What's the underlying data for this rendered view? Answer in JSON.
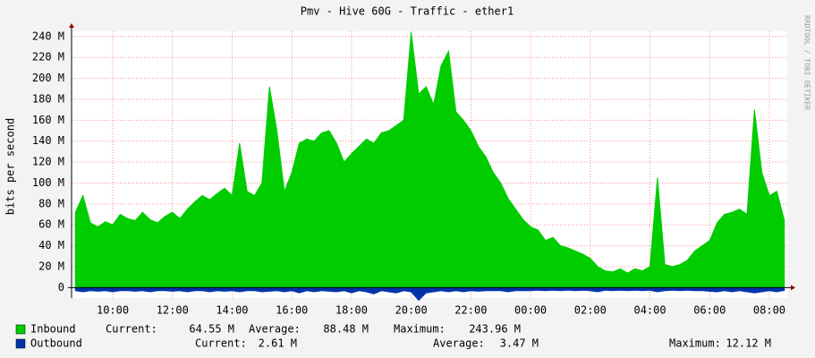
{
  "chart_data": {
    "type": "area",
    "title": "Pmv - Hive 60G - Traffic - ether1",
    "ylabel": "bits per second",
    "watermark": "RRDTOOL / TOBI OETIKER",
    "xlim": [
      8.62,
      32.6
    ],
    "ylim": [
      -10,
      245
    ],
    "xticks": [
      {
        "value": 10,
        "label": "10:00"
      },
      {
        "value": 12,
        "label": "12:00"
      },
      {
        "value": 14,
        "label": "14:00"
      },
      {
        "value": 16,
        "label": "16:00"
      },
      {
        "value": 18,
        "label": "18:00"
      },
      {
        "value": 20,
        "label": "20:00"
      },
      {
        "value": 22,
        "label": "22:00"
      },
      {
        "value": 24,
        "label": "00:00"
      },
      {
        "value": 26,
        "label": "02:00"
      },
      {
        "value": 28,
        "label": "04:00"
      },
      {
        "value": 30,
        "label": "06:00"
      },
      {
        "value": 32,
        "label": "08:00"
      }
    ],
    "yticks": [
      0,
      {
        "value": 20,
        "label": "20 M"
      },
      {
        "value": 40,
        "label": "40 M"
      },
      {
        "value": 60,
        "label": "60 M"
      },
      {
        "value": 80,
        "label": "80 M"
      },
      {
        "value": 100,
        "label": "100 M"
      },
      {
        "value": 120,
        "label": "120 M"
      },
      {
        "value": 140,
        "label": "140 M"
      },
      {
        "value": 160,
        "label": "160 M"
      },
      {
        "value": 180,
        "label": "180 M"
      },
      {
        "value": 200,
        "label": "200 M"
      },
      {
        "value": 220,
        "label": "220 M"
      },
      {
        "value": 240,
        "label": "240 M"
      }
    ],
    "grid": true,
    "x": [
      8.75,
      9,
      9.25,
      9.5,
      9.75,
      10,
      10.25,
      10.5,
      10.75,
      11,
      11.25,
      11.5,
      11.75,
      12,
      12.25,
      12.5,
      12.75,
      13,
      13.25,
      13.5,
      13.75,
      14,
      14.25,
      14.5,
      14.75,
      15,
      15.25,
      15.5,
      15.75,
      16,
      16.25,
      16.5,
      16.75,
      17,
      17.25,
      17.5,
      17.75,
      18,
      18.25,
      18.5,
      18.75,
      19,
      19.25,
      19.5,
      19.75,
      20,
      20.25,
      20.5,
      20.75,
      21,
      21.25,
      21.5,
      21.75,
      22,
      22.25,
      22.5,
      22.75,
      23,
      23.25,
      23.5,
      23.75,
      24,
      24.25,
      24.5,
      24.75,
      25,
      25.25,
      25.5,
      25.75,
      26,
      26.25,
      26.5,
      26.75,
      27,
      27.25,
      27.5,
      27.75,
      28,
      28.25,
      28.5,
      28.75,
      29,
      29.25,
      29.5,
      29.75,
      30,
      30.25,
      30.5,
      30.75,
      31,
      31.25,
      31.5,
      31.75,
      32,
      32.25,
      32.5
    ],
    "series": [
      {
        "name": "Inbound",
        "color": "#00cc00",
        "values": [
          72,
          88,
          62,
          58,
          63,
          60,
          70,
          66,
          64,
          72,
          65,
          62,
          68,
          72,
          66,
          75,
          82,
          88,
          84,
          90,
          95,
          88,
          138,
          92,
          88,
          100,
          192,
          150,
          92,
          110,
          138,
          142,
          140,
          148,
          150,
          138,
          120,
          128,
          135,
          142,
          138,
          148,
          150,
          155,
          160,
          243.96,
          185,
          192,
          175,
          212,
          226,
          168,
          160,
          150,
          135,
          125,
          110,
          100,
          85,
          75,
          65,
          58,
          55,
          45,
          48,
          40,
          38,
          35,
          32,
          28,
          20,
          16,
          15,
          18,
          14,
          18,
          16,
          20,
          105,
          22,
          20,
          22,
          26,
          35,
          40,
          45,
          62,
          70,
          72,
          75,
          70,
          170,
          110,
          88,
          92,
          64.55
        ]
      },
      {
        "name": "Outbound",
        "color": "#0033aa",
        "values": [
          -3,
          -4,
          -3,
          -3.5,
          -3,
          -4,
          -3,
          -3,
          -3.5,
          -3,
          -4,
          -3,
          -3,
          -3.5,
          -3,
          -4,
          -3,
          -3,
          -4,
          -3,
          -3.5,
          -3,
          -4,
          -3,
          -3,
          -4,
          -3.5,
          -3,
          -4,
          -3,
          -5,
          -3,
          -4,
          -3,
          -3.5,
          -4,
          -3,
          -5,
          -3,
          -4,
          -6,
          -3,
          -4,
          -5,
          -3,
          -4,
          -12.12,
          -5,
          -4,
          -3,
          -4,
          -3,
          -4,
          -3,
          -3.5,
          -3,
          -3,
          -3,
          -4,
          -3,
          -3,
          -3,
          -2.5,
          -3,
          -2.5,
          -3,
          -2.5,
          -3,
          -2.5,
          -3,
          -4,
          -2.5,
          -3,
          -2.5,
          -3,
          -2.5,
          -3,
          -2.5,
          -4,
          -3,
          -2.5,
          -3,
          -2.5,
          -3,
          -3,
          -3.5,
          -4,
          -3,
          -4,
          -3,
          -4,
          -5,
          -4,
          -3,
          -4,
          -2.61
        ]
      }
    ],
    "legend_stats": [
      [
        {
          "label": "Current:",
          "value": "64.55 M"
        },
        {
          "label": "Average:",
          "value": "88.48 M"
        },
        {
          "label": "Maximum:",
          "value": "243.96 M"
        }
      ],
      [
        {
          "label": "Current:",
          "value": "2.61 M"
        },
        {
          "label": "Average:",
          "value": "3.47 M"
        },
        {
          "label": "Maximum:",
          "value": "12.12 M"
        }
      ]
    ]
  }
}
